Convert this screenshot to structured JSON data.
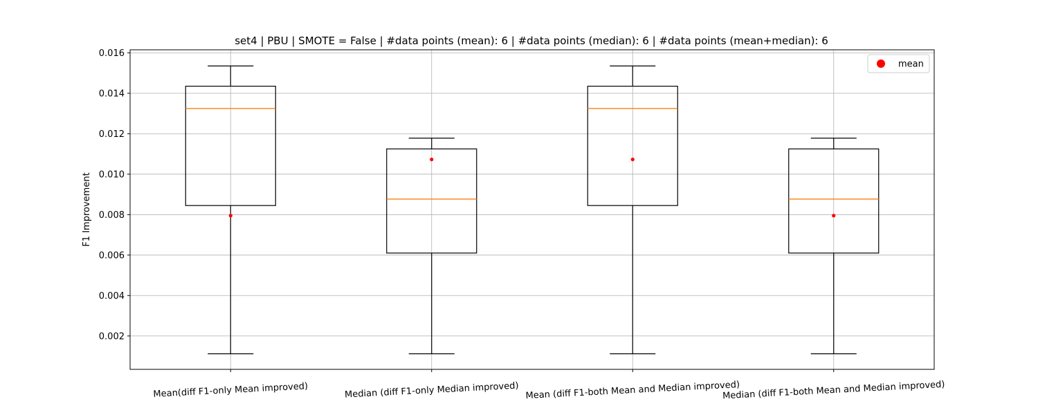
{
  "chart_data": {
    "type": "boxplot",
    "title": "set4 | PBU | SMOTE = False | #data points (mean): 6 | #data points (median): 6 | #data points (mean+median): 6",
    "ylabel": "F1 Improvement",
    "xlabel": "",
    "ylim": [
      0.00035,
      0.01615
    ],
    "yticks": [
      0.002,
      0.004,
      0.006,
      0.008,
      0.01,
      0.012,
      0.014,
      0.016
    ],
    "ytick_labels": [
      "0.002",
      "0.004",
      "0.006",
      "0.008",
      "0.010",
      "0.012",
      "0.014",
      "0.016"
    ],
    "grid": true,
    "legend": {
      "position": "top-right",
      "entries": [
        {
          "label": "mean",
          "color": "#ff0000"
        }
      ]
    },
    "colors": {
      "box": "#000000",
      "median": "#ff7f0e",
      "mean": "#ff0000",
      "grid": "#b0b0b0"
    },
    "categories": [
      "Mean(diff F1-only Mean improved)",
      "Median (diff F1-only Median improved)",
      "Mean (diff F1-both Mean and Median improved)",
      "Median (diff F1-both Mean and Median improved)"
    ],
    "boxes": [
      {
        "whisker_low": 0.00112,
        "q1": 0.00845,
        "median": 0.01325,
        "q3": 0.01435,
        "whisker_high": 0.01535,
        "mean": 0.00795
      },
      {
        "whisker_low": 0.00112,
        "q1": 0.0061,
        "median": 0.00877,
        "q3": 0.01125,
        "whisker_high": 0.01178,
        "mean": 0.01073
      },
      {
        "whisker_low": 0.00112,
        "q1": 0.00845,
        "median": 0.01325,
        "q3": 0.01435,
        "whisker_high": 0.01535,
        "mean": 0.01073
      },
      {
        "whisker_low": 0.00112,
        "q1": 0.0061,
        "median": 0.00877,
        "q3": 0.01125,
        "whisker_high": 0.01178,
        "mean": 0.00795
      }
    ]
  }
}
